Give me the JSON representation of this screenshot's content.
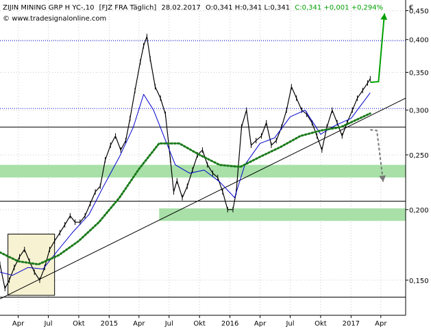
{
  "header": {
    "instrument": "ZIJIN MINING GRP H YC-,10",
    "exchange": "[FJZ FRA  Täglich]",
    "date": "28.02.2017",
    "ohlc": "O:0,341 H:0,341 L:0,341",
    "close_change": "C:0,341 +0,001 +0,294%",
    "source": "www.tradesignalonline.com",
    "currency": "€",
    "colors": {
      "positive": "#00a000",
      "text": "#000000"
    }
  },
  "chart_data": {
    "type": "line",
    "title": "",
    "ylabel": "",
    "xlabel": "",
    "y_scale": "log",
    "ylim": [
      0.13,
      0.47
    ],
    "y_ticks": [
      0.45,
      0.4,
      0.35,
      0.3,
      0.25,
      0.2,
      0.15
    ],
    "y_tick_labels": [
      "0,450",
      "0,400",
      "0,350",
      "0,300",
      "0,250",
      "0,200",
      "0,150"
    ],
    "x_range": [
      "2014-02-05",
      "2017-06-15"
    ],
    "x_ticks": [
      {
        "date": "2014-04-01",
        "label": "Apr"
      },
      {
        "date": "2014-07-01",
        "label": "Jul"
      },
      {
        "date": "2014-10-01",
        "label": "Okt"
      },
      {
        "date": "2015-01-01",
        "label": "2015"
      },
      {
        "date": "2015-04-01",
        "label": "Apr"
      },
      {
        "date": "2015-07-01",
        "label": "Jul"
      },
      {
        "date": "2015-10-01",
        "label": "Okt"
      },
      {
        "date": "2016-01-01",
        "label": "2016"
      },
      {
        "date": "2016-04-01",
        "label": "Apr"
      },
      {
        "date": "2016-07-01",
        "label": "Jul"
      },
      {
        "date": "2016-10-01",
        "label": "Okt"
      },
      {
        "date": "2017-01-01",
        "label": "2017"
      },
      {
        "date": "2017-04-01",
        "label": "Apr"
      }
    ],
    "grid": {
      "horizontal": true,
      "vertical": true,
      "style": "dotted"
    },
    "series": [
      {
        "style": "price",
        "color": "#000000",
        "points": [
          [
            "2014-02-05",
            0.16
          ],
          [
            "2014-02-20",
            0.145
          ],
          [
            "2014-03-05",
            0.15
          ],
          [
            "2014-03-20",
            0.158
          ],
          [
            "2014-04-05",
            0.165
          ],
          [
            "2014-04-20",
            0.17
          ],
          [
            "2014-05-05",
            0.162
          ],
          [
            "2014-05-20",
            0.155
          ],
          [
            "2014-06-05",
            0.15
          ],
          [
            "2014-06-20",
            0.158
          ],
          [
            "2014-07-05",
            0.17
          ],
          [
            "2014-07-20",
            0.176
          ],
          [
            "2014-08-05",
            0.182
          ],
          [
            "2014-08-20",
            0.188
          ],
          [
            "2014-09-05",
            0.195
          ],
          [
            "2014-09-20",
            0.19
          ],
          [
            "2014-10-05",
            0.19
          ],
          [
            "2014-10-20",
            0.195
          ],
          [
            "2014-11-05",
            0.205
          ],
          [
            "2014-11-20",
            0.215
          ],
          [
            "2014-12-05",
            0.22
          ],
          [
            "2014-12-20",
            0.245
          ],
          [
            "2015-01-05",
            0.26
          ],
          [
            "2015-01-20",
            0.27
          ],
          [
            "2015-02-05",
            0.255
          ],
          [
            "2015-02-20",
            0.265
          ],
          [
            "2015-03-05",
            0.29
          ],
          [
            "2015-03-20",
            0.325
          ],
          [
            "2015-04-05",
            0.365
          ],
          [
            "2015-04-15",
            0.39
          ],
          [
            "2015-04-25",
            0.405
          ],
          [
            "2015-05-05",
            0.37
          ],
          [
            "2015-05-20",
            0.33
          ],
          [
            "2015-06-05",
            0.315
          ],
          [
            "2015-06-20",
            0.295
          ],
          [
            "2015-07-05",
            0.245
          ],
          [
            "2015-07-15",
            0.215
          ],
          [
            "2015-07-25",
            0.225
          ],
          [
            "2015-08-10",
            0.21
          ],
          [
            "2015-08-25",
            0.22
          ],
          [
            "2015-09-10",
            0.235
          ],
          [
            "2015-09-25",
            0.25
          ],
          [
            "2015-10-10",
            0.255
          ],
          [
            "2015-10-25",
            0.24
          ],
          [
            "2015-11-10",
            0.232
          ],
          [
            "2015-11-25",
            0.228
          ],
          [
            "2015-12-10",
            0.215
          ],
          [
            "2015-12-25",
            0.2
          ],
          [
            "2016-01-10",
            0.2
          ],
          [
            "2016-01-20",
            0.215
          ],
          [
            "2016-02-05",
            0.28
          ],
          [
            "2016-02-20",
            0.3
          ],
          [
            "2016-03-05",
            0.26
          ],
          [
            "2016-03-20",
            0.265
          ],
          [
            "2016-04-05",
            0.27
          ],
          [
            "2016-04-20",
            0.285
          ],
          [
            "2016-05-05",
            0.26
          ],
          [
            "2016-05-20",
            0.265
          ],
          [
            "2016-06-05",
            0.28
          ],
          [
            "2016-06-20",
            0.3
          ],
          [
            "2016-07-05",
            0.33
          ],
          [
            "2016-07-20",
            0.315
          ],
          [
            "2016-08-05",
            0.3
          ],
          [
            "2016-08-20",
            0.295
          ],
          [
            "2016-09-05",
            0.285
          ],
          [
            "2016-09-20",
            0.27
          ],
          [
            "2016-10-05",
            0.255
          ],
          [
            "2016-10-20",
            0.28
          ],
          [
            "2016-11-05",
            0.3
          ],
          [
            "2016-11-20",
            0.285
          ],
          [
            "2016-12-05",
            0.27
          ],
          [
            "2016-12-20",
            0.285
          ],
          [
            "2017-01-05",
            0.3
          ],
          [
            "2017-01-20",
            0.315
          ],
          [
            "2017-02-05",
            0.325
          ],
          [
            "2017-02-20",
            0.335
          ],
          [
            "2017-02-28",
            0.341
          ]
        ]
      },
      {
        "style": "moving-average",
        "color": "#0000cc",
        "points": [
          [
            "2014-02-05",
            0.155
          ],
          [
            "2014-03-15",
            0.153
          ],
          [
            "2014-05-01",
            0.158
          ],
          [
            "2014-06-15",
            0.157
          ],
          [
            "2014-08-01",
            0.17
          ],
          [
            "2014-09-15",
            0.183
          ],
          [
            "2014-11-01",
            0.196
          ],
          [
            "2014-12-15",
            0.22
          ],
          [
            "2015-02-01",
            0.248
          ],
          [
            "2015-03-15",
            0.28
          ],
          [
            "2015-04-15",
            0.32
          ],
          [
            "2015-05-15",
            0.3
          ],
          [
            "2015-06-15",
            0.27
          ],
          [
            "2015-07-20",
            0.24
          ],
          [
            "2015-09-01",
            0.232
          ],
          [
            "2015-10-15",
            0.235
          ],
          [
            "2015-12-01",
            0.224
          ],
          [
            "2016-01-15",
            0.21
          ],
          [
            "2016-02-15",
            0.24
          ],
          [
            "2016-04-01",
            0.262
          ],
          [
            "2016-05-15",
            0.268
          ],
          [
            "2016-07-01",
            0.292
          ],
          [
            "2016-08-15",
            0.3
          ],
          [
            "2016-10-01",
            0.272
          ],
          [
            "2016-11-15",
            0.282
          ],
          [
            "2017-01-01",
            0.29
          ],
          [
            "2017-02-28",
            0.322
          ]
        ]
      },
      {
        "style": "moving-average-dotted",
        "color": "#1a7a1a",
        "points": [
          [
            "2014-02-05",
            0.168
          ],
          [
            "2014-04-01",
            0.162
          ],
          [
            "2014-06-01",
            0.16
          ],
          [
            "2014-08-01",
            0.166
          ],
          [
            "2014-10-01",
            0.176
          ],
          [
            "2014-12-01",
            0.19
          ],
          [
            "2015-02-01",
            0.21
          ],
          [
            "2015-04-01",
            0.236
          ],
          [
            "2015-06-01",
            0.262
          ],
          [
            "2015-08-01",
            0.262
          ],
          [
            "2015-10-01",
            0.25
          ],
          [
            "2015-12-01",
            0.24
          ],
          [
            "2016-02-01",
            0.238
          ],
          [
            "2016-04-01",
            0.248
          ],
          [
            "2016-06-01",
            0.258
          ],
          [
            "2016-08-01",
            0.27
          ],
          [
            "2016-10-01",
            0.276
          ],
          [
            "2016-12-01",
            0.28
          ],
          [
            "2017-02-28",
            0.296
          ]
        ]
      }
    ],
    "annotations": {
      "horizontal_lines": [
        {
          "y": 0.398,
          "style": "dotted",
          "color": "#0000cc"
        },
        {
          "y": 0.302,
          "style": "dotted",
          "color": "#0000cc"
        },
        {
          "y": 0.28,
          "style": "solid",
          "color": "#000000"
        },
        {
          "y": 0.207,
          "style": "solid",
          "color": "#000000"
        },
        {
          "y": 0.14,
          "style": "solid",
          "color": "#000000"
        }
      ],
      "zones": [
        {
          "from_date": "2014-02-05",
          "to_date": "2017-06-15",
          "y_low": 0.228,
          "y_high": 0.24,
          "color": "#a8e0a8"
        },
        {
          "from_date": "2015-06-01",
          "to_date": "2017-06-15",
          "y_low": 0.191,
          "y_high": 0.201,
          "color": "#a8e0a8"
        }
      ],
      "box": {
        "from_date": "2014-03-01",
        "to_date": "2014-07-20",
        "y_low": 0.141,
        "y_high": 0.181,
        "color": "#f6f2d2"
      },
      "trendlines": [
        {
          "from": [
            "2014-02-05",
            0.139
          ],
          "to": [
            "2017-06-15",
            0.315
          ],
          "color": "#000000"
        }
      ],
      "arrows": [
        {
          "points": [
            [
              "2017-02-28",
              0.336
            ],
            [
              "2017-03-25",
              0.337
            ],
            [
              "2017-04-12",
              0.445
            ]
          ],
          "color": "#00a000",
          "style": "solid"
        },
        {
          "points": [
            [
              "2017-02-28",
              0.277
            ],
            [
              "2017-03-20",
              0.276
            ],
            [
              "2017-04-08",
              0.224
            ]
          ],
          "color": "#777777",
          "style": "dashed"
        }
      ]
    }
  }
}
